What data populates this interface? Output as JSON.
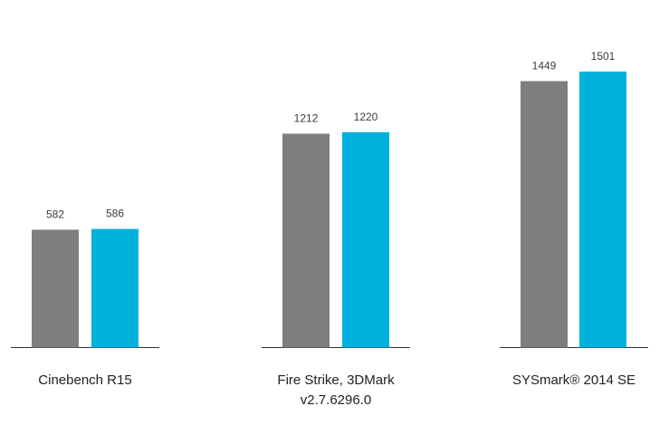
{
  "chart_data": {
    "type": "bar",
    "categories": [
      [
        "Cinebench R15"
      ],
      [
        "Fire Strike, 3DMark",
        "v2.7.6296.0"
      ],
      [
        "SYSmark® 2014 SE"
      ]
    ],
    "series": [
      {
        "color": "#7f7d7e",
        "values": [
          582,
          1212,
          1449
        ]
      },
      {
        "color": "#00b1de",
        "values": [
          586,
          1220,
          1501
        ]
      }
    ],
    "value_labels": [
      [
        "582",
        "1212",
        "1449"
      ],
      [
        "586",
        "1220",
        "1501"
      ]
    ],
    "per_group_scale": true,
    "legend": "none",
    "grid": false,
    "title": "",
    "xlabel": "",
    "ylabel": ""
  }
}
